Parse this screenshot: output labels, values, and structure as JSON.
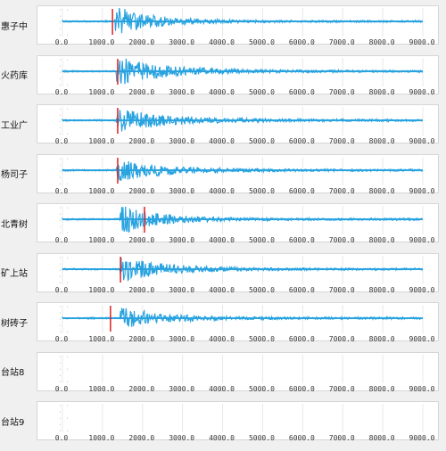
{
  "x_axis": {
    "min": 0,
    "max": 9000,
    "tick_labels": [
      "0.0",
      "1000.0",
      "2000.0",
      "3000.0",
      "4000.0",
      "5000.0",
      "6000.0",
      "7000.0",
      "8000.0",
      "9000.0"
    ]
  },
  "y_tick_glyph": "· · ·",
  "colors": {
    "waveform": "#29a3e0",
    "pick_marker": "#e02020",
    "gridline": "#e8e8e8"
  },
  "stations": [
    {
      "label": "惠子中",
      "has_data": true,
      "onset": 1300,
      "pick": 1250,
      "peak": 1.0,
      "decay": 900
    },
    {
      "label": "火药库",
      "has_data": true,
      "onset": 1350,
      "pick": 1380,
      "peak": 1.0,
      "decay": 1100
    },
    {
      "label": "工业广",
      "has_data": true,
      "onset": 1350,
      "pick": 1380,
      "peak": 0.85,
      "decay": 1200
    },
    {
      "label": "杨司子",
      "has_data": true,
      "onset": 1350,
      "pick": 1380,
      "peak": 0.8,
      "decay": 1100
    },
    {
      "label": "北青树",
      "has_data": true,
      "onset": 1450,
      "pick": 2050,
      "peak": 1.0,
      "decay": 900
    },
    {
      "label": "矿上站",
      "has_data": true,
      "onset": 1450,
      "pick": 1450,
      "peak": 0.9,
      "decay": 1000
    },
    {
      "label": "树砖子",
      "has_data": true,
      "onset": 1450,
      "pick": 1200,
      "peak": 0.85,
      "decay": 900
    },
    {
      "label": "台站8",
      "has_data": false
    },
    {
      "label": "台站9",
      "has_data": false
    }
  ]
}
